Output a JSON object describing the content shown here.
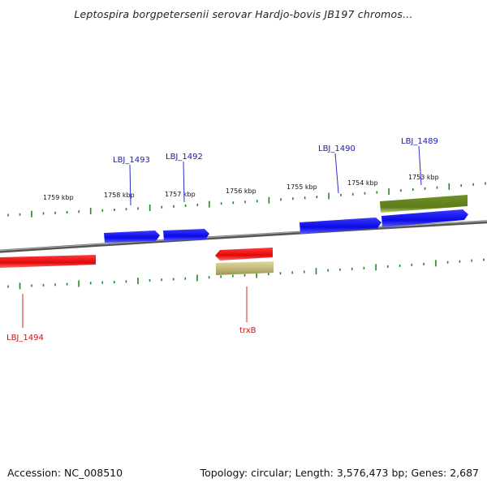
{
  "title": "Leptospira borgpetersenii serovar Hardjo-bovis JB197 chromos...",
  "footer": {
    "accession": "Accession: NC_008510",
    "topology": "Topology: circular; Length: 3,576,473 bp; Genes: 2,687"
  },
  "ticks": [
    {
      "label": "1759 kbp"
    },
    {
      "label": "1758 kbp"
    },
    {
      "label": "1757 kbp"
    },
    {
      "label": "1756 kbp"
    },
    {
      "label": "1755 kbp"
    },
    {
      "label": "1754 kbp"
    },
    {
      "label": "1753 kbp"
    }
  ],
  "forward_genes": [
    {
      "label": "LBJ_1493"
    },
    {
      "label": "LBJ_1492"
    },
    {
      "label": "LBJ_1490"
    },
    {
      "label": "LBJ_1489"
    }
  ],
  "reverse_genes": [
    {
      "label": "LBJ_1494"
    },
    {
      "label": "trxB"
    }
  ],
  "colors": {
    "forward_cds": "#0a0aee",
    "reverse_cds": "#ee0a0a",
    "forward_other": "#6b8a1e",
    "reverse_other": "#b8b070",
    "backbone": "#777777",
    "ticks": "#1e8a1e",
    "forward_label": "#1a1ab0",
    "reverse_label": "#cc1111"
  }
}
